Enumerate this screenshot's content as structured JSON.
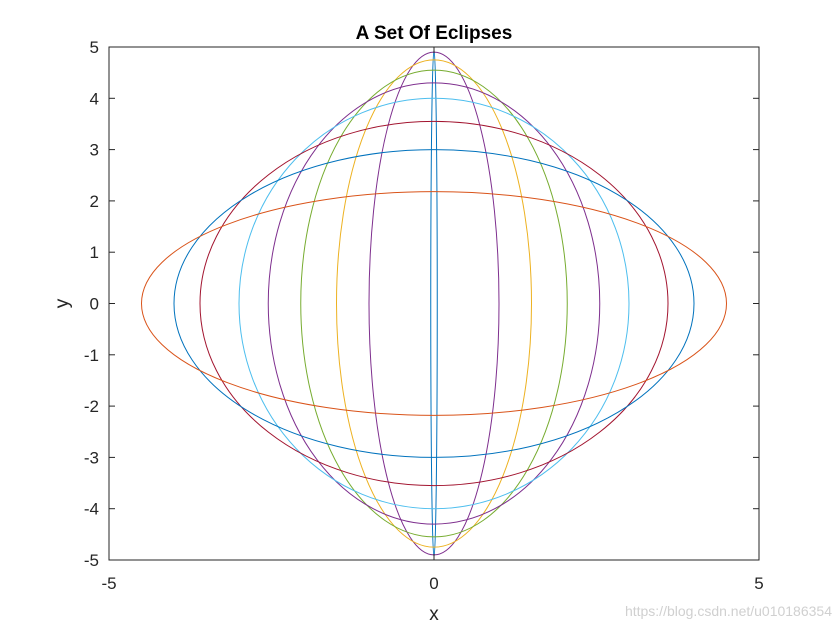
{
  "chart_data": {
    "type": "line",
    "title": "A Set Of Eclipses",
    "xlabel": "x",
    "ylabel": "y",
    "xlim": [
      -5,
      5
    ],
    "ylim": [
      -5,
      5
    ],
    "xticks": [
      -5,
      0,
      5
    ],
    "yticks": [
      -5,
      -4,
      -3,
      -2,
      -1,
      0,
      1,
      2,
      3,
      4,
      5
    ],
    "grid": false,
    "box": true,
    "series": [
      {
        "a": 0.05,
        "b": 4.95,
        "color": "#0072bd"
      },
      {
        "a": 1.0,
        "b": 4.9,
        "color": "#7e2f8e"
      },
      {
        "a": 1.5,
        "b": 4.75,
        "color": "#edb120"
      },
      {
        "a": 2.05,
        "b": 4.55,
        "color": "#77ac30"
      },
      {
        "a": 2.55,
        "b": 4.3,
        "color": "#7e2f8e"
      },
      {
        "a": 3.0,
        "b": 4.0,
        "color": "#4dbeee"
      },
      {
        "a": 3.6,
        "b": 3.55,
        "color": "#a2142f"
      },
      {
        "a": 4.0,
        "b": 3.0,
        "color": "#0072bd"
      },
      {
        "a": 4.5,
        "b": 2.18,
        "color": "#d95319"
      }
    ]
  },
  "watermark": "https://blog.csdn.net/u010186354"
}
